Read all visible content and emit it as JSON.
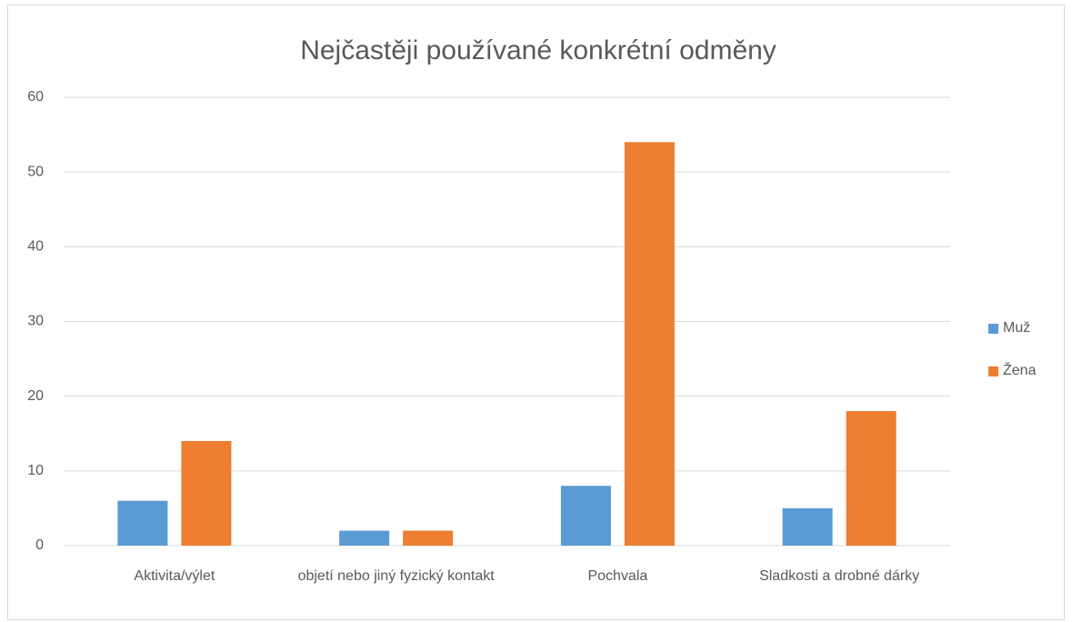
{
  "chart_data": {
    "type": "bar",
    "title": "Nejčastěji používané konkrétní odměny",
    "categories": [
      "Aktivita/výlet",
      "objetí nebo jiný fyzický kontakt",
      "Pochvala",
      "Sladkosti a drobné dárky"
    ],
    "series": [
      {
        "name": "Muž",
        "color": "#5b9bd5",
        "values": [
          6,
          2,
          8,
          5
        ]
      },
      {
        "name": "Žena",
        "color": "#ed7d31",
        "values": [
          14,
          2,
          54,
          18
        ]
      }
    ],
    "ylim": [
      0,
      60
    ],
    "yticks": [
      0,
      10,
      20,
      30,
      40,
      50,
      60
    ],
    "grid": true,
    "legend": "right"
  }
}
